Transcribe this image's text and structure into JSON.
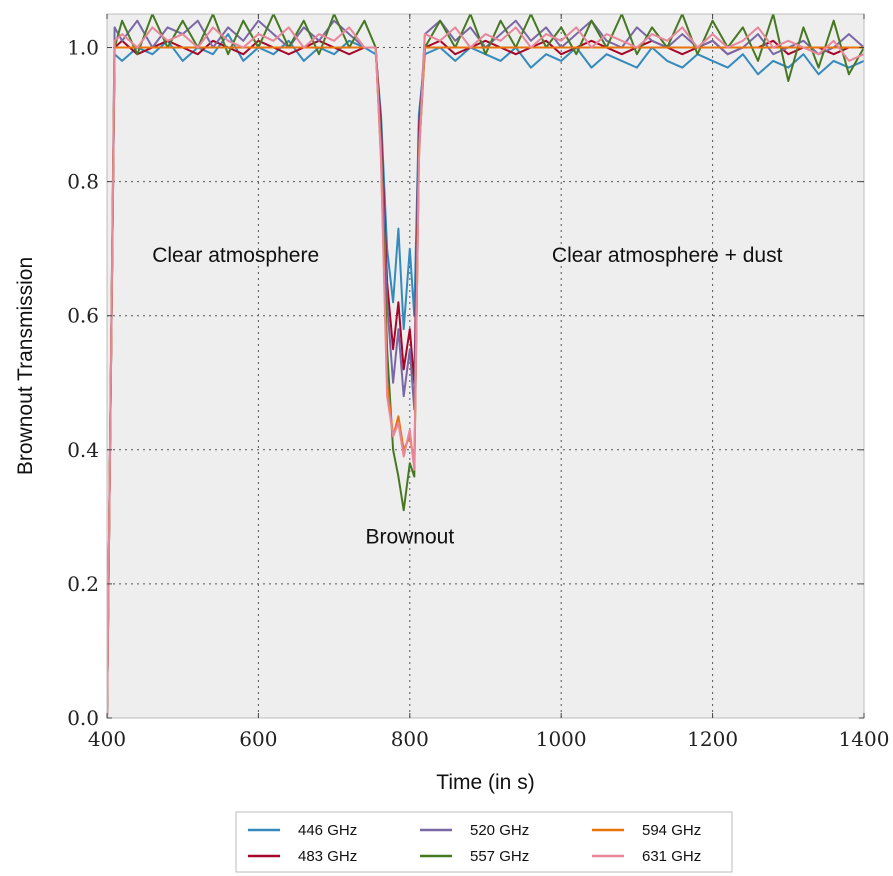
{
  "chart_data": {
    "type": "line",
    "title": "",
    "xlabel": "Time (in s)",
    "ylabel": "Brownout Transmission",
    "xlim": [
      400,
      1400
    ],
    "ylim": [
      0.0,
      1.05
    ],
    "x_ticks": [
      400,
      600,
      800,
      1000,
      1200,
      1400
    ],
    "y_ticks": [
      0.0,
      0.2,
      0.4,
      0.6,
      0.8,
      1.0
    ],
    "x_tick_labels": [
      "400",
      "600",
      "800",
      "1000",
      "1200",
      "1400"
    ],
    "y_tick_labels": [
      "0.0",
      "0.2",
      "0.4",
      "0.6",
      "0.8",
      "1.0"
    ],
    "grid": true,
    "legend_position": "bottom-center",
    "annotations": [
      {
        "text": "Clear atmosphere",
        "x": 570,
        "y": 0.68
      },
      {
        "text": "Brownout",
        "x": 800,
        "y": 0.26
      },
      {
        "text": "Clear atmosphere + dust",
        "x": 1140,
        "y": 0.68
      }
    ],
    "x": [
      400,
      410,
      420,
      440,
      460,
      480,
      500,
      520,
      540,
      560,
      580,
      600,
      620,
      640,
      660,
      680,
      700,
      720,
      740,
      755,
      762,
      770,
      778,
      785,
      792,
      800,
      806,
      812,
      820,
      840,
      860,
      880,
      900,
      920,
      940,
      960,
      980,
      1000,
      1020,
      1040,
      1060,
      1080,
      1100,
      1120,
      1140,
      1160,
      1180,
      1200,
      1220,
      1240,
      1260,
      1280,
      1300,
      1320,
      1340,
      1360,
      1380,
      1400
    ],
    "series": [
      {
        "name": "446 GHz",
        "color": "#348abd",
        "values": [
          0.0,
          0.99,
          0.98,
          1.0,
          0.99,
          1.01,
          0.98,
          1.0,
          0.99,
          1.02,
          0.98,
          1.0,
          0.99,
          1.01,
          0.98,
          1.0,
          0.99,
          1.01,
          1.0,
          0.99,
          0.9,
          0.7,
          0.62,
          0.73,
          0.58,
          0.7,
          0.6,
          0.9,
          0.99,
          1.0,
          0.98,
          1.0,
          0.99,
          0.98,
          1.0,
          0.97,
          0.99,
          0.98,
          1.0,
          0.97,
          0.99,
          0.98,
          0.97,
          1.0,
          0.98,
          0.97,
          0.99,
          0.98,
          0.97,
          0.99,
          0.96,
          0.98,
          0.97,
          0.99,
          0.96,
          0.98,
          0.97,
          0.98
        ]
      },
      {
        "name": "483 GHz",
        "color": "#a60628",
        "values": [
          0.0,
          1.0,
          1.01,
          0.99,
          1.0,
          1.01,
          1.0,
          0.99,
          1.01,
          1.0,
          0.99,
          1.01,
          1.0,
          0.99,
          1.0,
          1.01,
          1.0,
          0.99,
          1.0,
          1.0,
          0.88,
          0.65,
          0.55,
          0.62,
          0.52,
          0.58,
          0.5,
          0.88,
          1.0,
          1.01,
          0.99,
          1.0,
          1.01,
          1.0,
          0.99,
          1.0,
          1.01,
          0.99,
          1.0,
          1.01,
          1.0,
          0.99,
          1.0,
          1.01,
          1.0,
          0.99,
          1.0,
          1.01,
          0.99,
          1.0,
          1.0,
          1.01,
          0.99,
          1.0,
          1.0,
          0.99,
          1.0,
          1.0
        ]
      },
      {
        "name": "520 GHz",
        "color": "#7a68a6",
        "values": [
          0.0,
          1.03,
          1.01,
          1.04,
          1.0,
          1.03,
          1.02,
          1.04,
          1.0,
          1.03,
          1.01,
          1.04,
          1.02,
          1.0,
          1.03,
          1.01,
          1.04,
          1.02,
          1.0,
          1.0,
          0.86,
          0.62,
          0.5,
          0.58,
          0.48,
          0.55,
          0.46,
          0.86,
          1.02,
          1.04,
          1.01,
          1.03,
          1.0,
          1.02,
          1.04,
          1.01,
          1.03,
          1.0,
          1.02,
          1.04,
          1.01,
          1.0,
          1.03,
          1.01,
          1.0,
          1.02,
          1.0,
          1.01,
          0.99,
          1.0,
          1.02,
          0.99,
          1.0,
          1.01,
          0.99,
          1.0,
          1.02,
          1.0
        ]
      },
      {
        "name": "557 GHz",
        "color": "#467821",
        "values": [
          0.0,
          1.0,
          1.04,
          0.99,
          1.05,
          1.0,
          1.04,
          1.0,
          1.05,
          0.99,
          1.04,
          1.0,
          1.05,
          1.0,
          1.04,
          0.99,
          1.05,
          1.0,
          1.04,
          1.0,
          0.84,
          0.55,
          0.4,
          0.36,
          0.31,
          0.38,
          0.36,
          0.84,
          1.0,
          1.04,
          1.0,
          1.05,
          0.99,
          1.04,
          1.0,
          1.05,
          1.0,
          1.03,
          0.99,
          1.04,
          1.0,
          1.05,
          0.99,
          1.03,
          1.0,
          1.05,
          0.99,
          1.04,
          1.0,
          1.03,
          0.98,
          1.05,
          0.95,
          1.03,
          0.97,
          1.04,
          0.96,
          1.0
        ]
      },
      {
        "name": "594 GHz",
        "color": "#e8740e",
        "values": [
          0.0,
          1.0,
          1.0,
          1.0,
          1.0,
          1.0,
          1.0,
          1.0,
          1.0,
          1.0,
          1.0,
          1.0,
          1.0,
          1.0,
          1.0,
          1.0,
          1.0,
          1.0,
          1.0,
          1.0,
          0.84,
          0.5,
          0.42,
          0.45,
          0.4,
          0.42,
          0.38,
          0.84,
          1.0,
          1.0,
          1.0,
          1.0,
          1.0,
          1.0,
          1.0,
          1.0,
          1.0,
          1.0,
          1.0,
          1.0,
          1.0,
          1.0,
          1.0,
          1.0,
          1.0,
          1.0,
          1.0,
          1.0,
          1.0,
          1.0,
          1.0,
          1.0,
          1.0,
          1.0,
          1.0,
          1.0,
          1.0,
          1.0
        ]
      },
      {
        "name": "631 GHz",
        "color": "#e8869a",
        "values": [
          0.0,
          1.01,
          1.02,
          1.0,
          1.03,
          1.01,
          1.02,
          1.0,
          1.03,
          1.01,
          1.0,
          1.02,
          1.01,
          1.03,
          1.0,
          1.02,
          1.01,
          1.03,
          1.0,
          1.0,
          0.83,
          0.48,
          0.42,
          0.44,
          0.39,
          0.43,
          0.37,
          0.83,
          1.02,
          1.01,
          1.03,
          1.0,
          1.02,
          1.01,
          1.03,
          1.0,
          1.02,
          1.01,
          1.03,
          1.0,
          1.02,
          1.01,
          1.0,
          1.02,
          1.01,
          1.03,
          1.0,
          1.02,
          1.0,
          1.01,
          1.03,
          1.0,
          1.01,
          1.0,
          0.99,
          1.01,
          0.98,
          0.99
        ]
      }
    ]
  }
}
